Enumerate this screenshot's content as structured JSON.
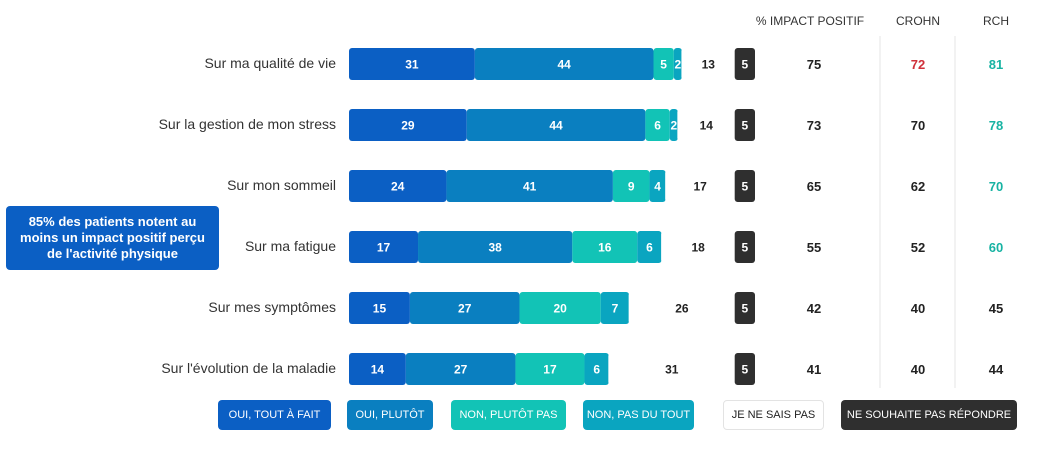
{
  "chart_data": {
    "type": "bar",
    "orientation": "horizontal-stacked",
    "categories": [
      "Sur ma qualité de vie",
      "Sur la gestion de mon stress",
      "Sur mon sommeil",
      "Sur ma fatigue",
      "Sur mes symptômes",
      "Sur l'évolution de la maladie"
    ],
    "series": [
      {
        "name": "OUI, TOUT À FAIT",
        "color": "#0b5fc4",
        "values": [
          31,
          29,
          24,
          17,
          15,
          14
        ]
      },
      {
        "name": "OUI, PLUTÔT",
        "color": "#0a7fc0",
        "values": [
          44,
          44,
          41,
          38,
          27,
          27
        ]
      },
      {
        "name": "NON, PLUTÔT PAS",
        "color": "#12c3b6",
        "values": [
          5,
          6,
          9,
          16,
          20,
          17
        ]
      },
      {
        "name": "NON, PAS DU TOUT",
        "color": "#0aa5c0",
        "values": [
          2,
          2,
          4,
          6,
          7,
          6
        ]
      },
      {
        "name": "JE NE SAIS PAS",
        "color": "#ffffff",
        "values": [
          13,
          14,
          17,
          18,
          26,
          31
        ]
      },
      {
        "name": "NE SOUHAITE PAS RÉPONDRE",
        "color": "#2f2f2f",
        "values": [
          5,
          5,
          5,
          5,
          5,
          5
        ]
      }
    ],
    "columns": {
      "impact": {
        "label": "% IMPACT POSITIF",
        "values": [
          75,
          73,
          65,
          55,
          42,
          41
        ]
      },
      "crohn": {
        "label": "CROHN",
        "values": [
          72,
          70,
          62,
          52,
          40,
          40
        ],
        "colors": [
          "#d0303a",
          "#222222",
          "#222222",
          "#222222",
          "#222222",
          "#222222"
        ]
      },
      "rch": {
        "label": "RCH",
        "values": [
          81,
          78,
          70,
          60,
          45,
          44
        ],
        "colors": [
          "#17b3a3",
          "#17b3a3",
          "#17b3a3",
          "#17b3a3",
          "#222222",
          "#222222"
        ]
      }
    },
    "legend_position": "bottom"
  },
  "callout": {
    "text": "85% des patients notent au moins un impact positif perçu de l'activité physique"
  }
}
